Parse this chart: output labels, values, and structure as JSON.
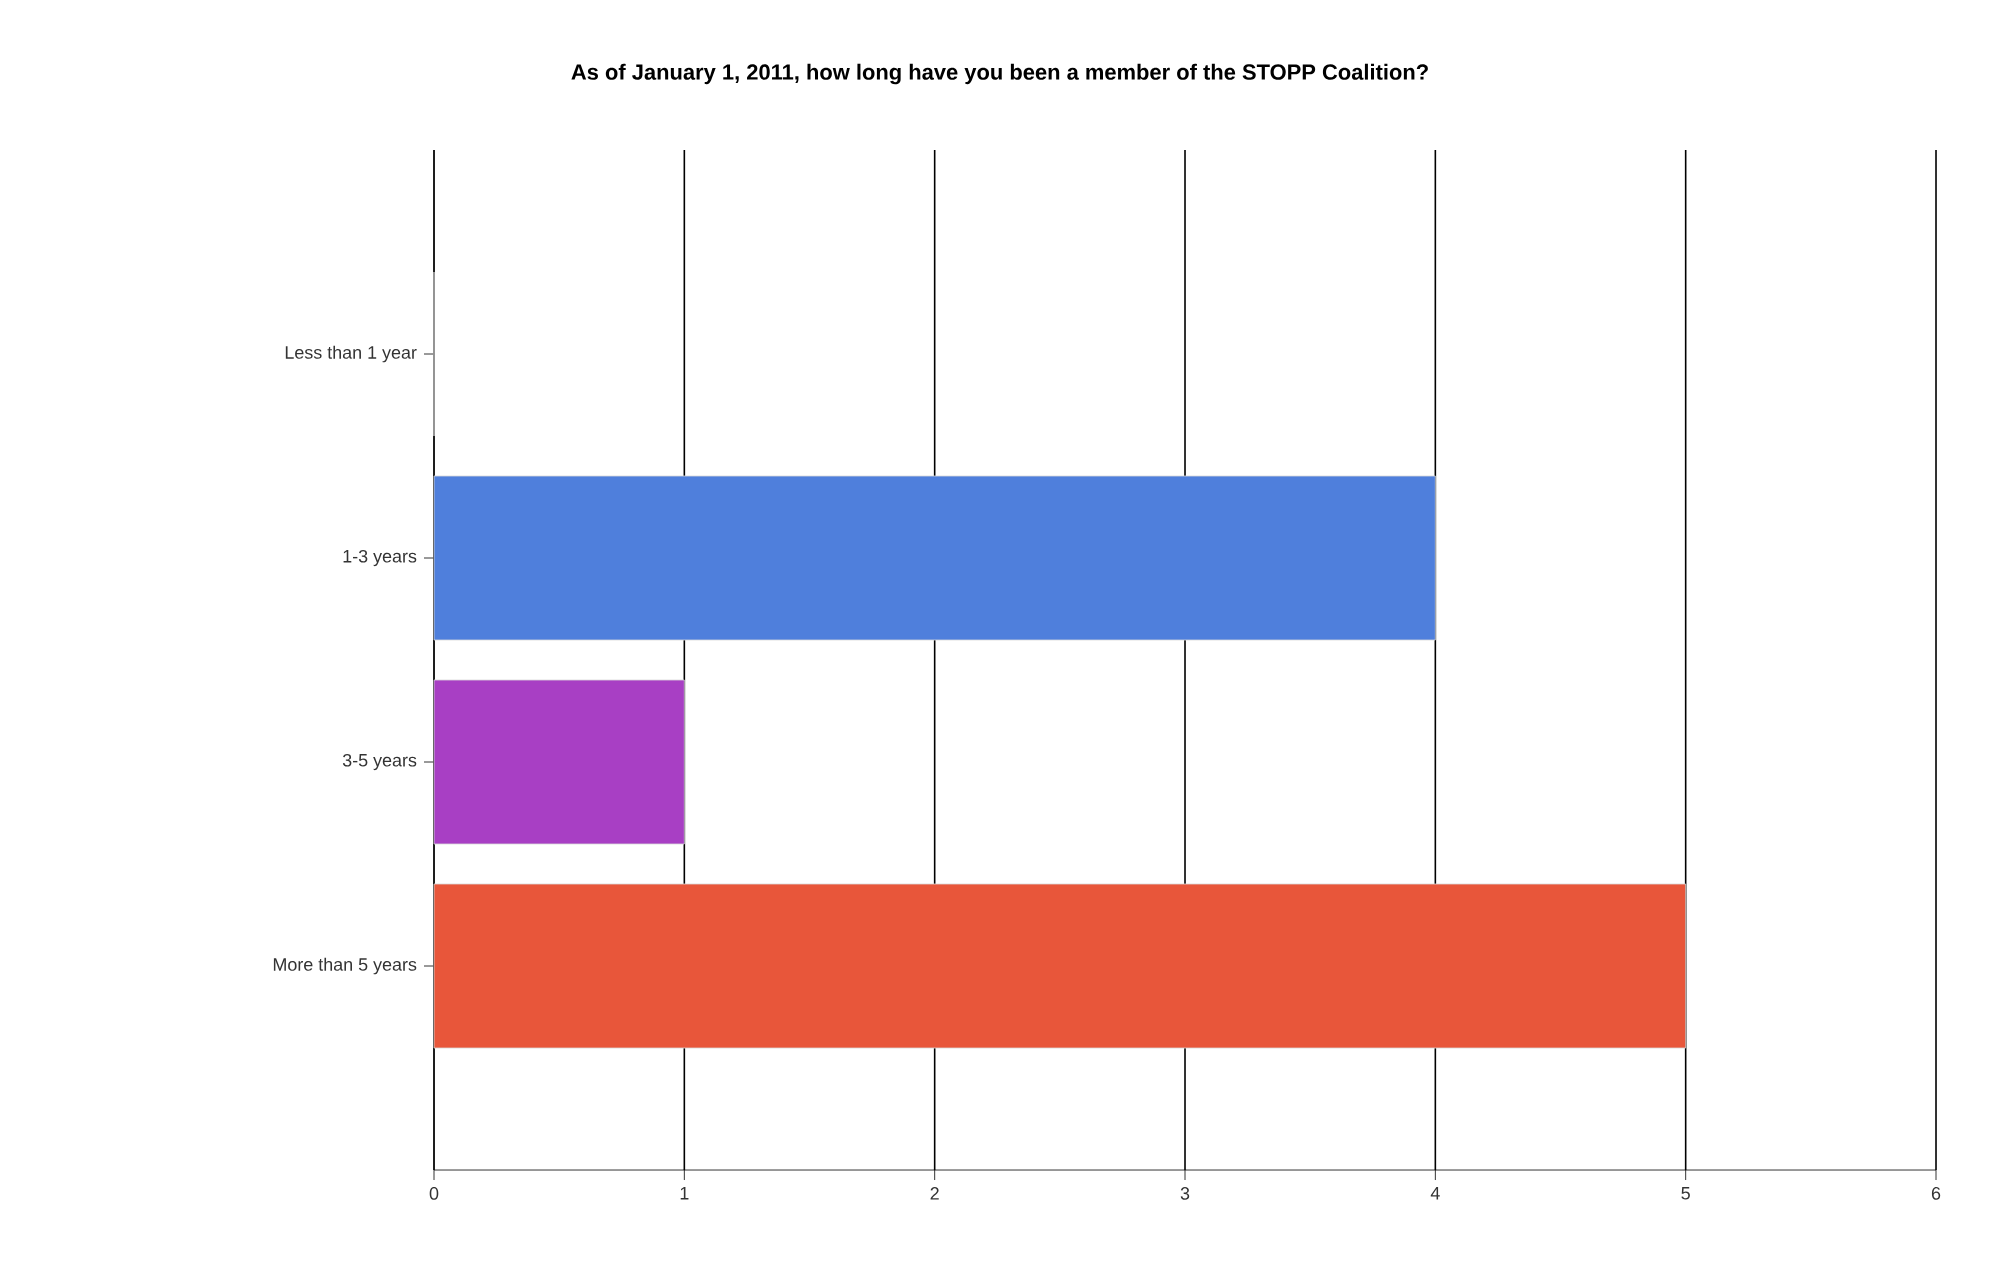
{
  "chart_data": {
    "type": "bar",
    "orientation": "horizontal",
    "title": "As of January 1, 2011, how long have you been a member of the STOPP Coalition?",
    "categories": [
      "Less than 1 year",
      "1-3 years",
      "3-5 years",
      "More than 5 years"
    ],
    "values": [
      0,
      4,
      1,
      5
    ],
    "colors": [
      "#4f7fdc",
      "#4f7fdc",
      "#a83fc4",
      "#e8563a"
    ],
    "xlim": [
      0,
      6
    ],
    "xticks": [
      0,
      1,
      2,
      3,
      4,
      5,
      6
    ],
    "grid": "x"
  }
}
